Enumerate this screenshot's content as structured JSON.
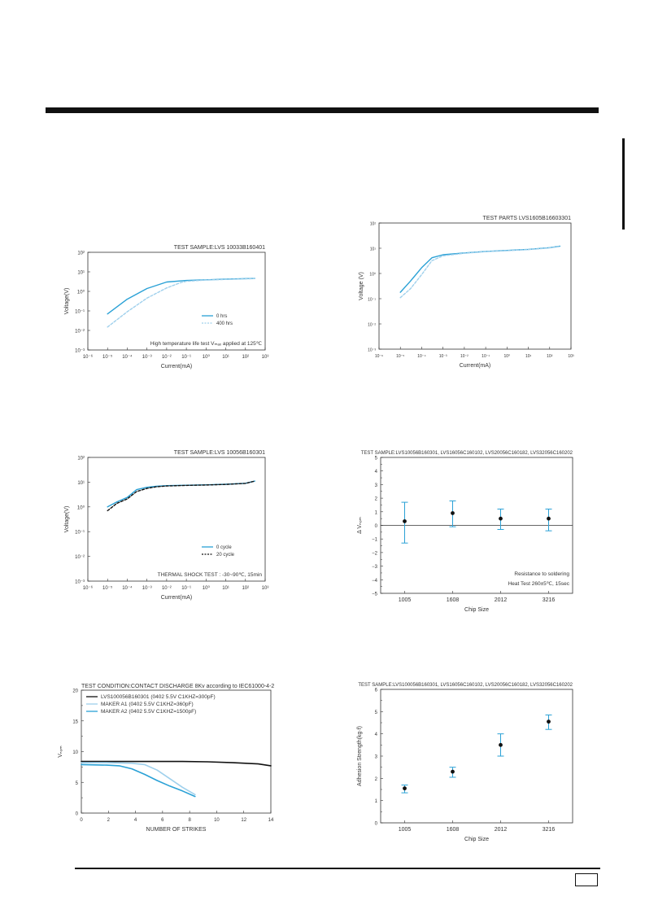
{
  "page": {
    "page_number": ""
  },
  "charts": [
    {
      "id": "c1",
      "type": "line",
      "title": "TEST SAMPLE:LVS 10033B160401",
      "xlabel": "Current(mA)",
      "ylabel": "Voltage(V)",
      "x_scale": "log",
      "y_scale": "log",
      "xlim": [
        1e-06,
        1000.0
      ],
      "ylim": [
        0.001,
        100.0
      ],
      "x_ticks": [
        "10⁻⁶",
        "10⁻⁵",
        "10⁻⁴",
        "10⁻³",
        "10⁻²",
        "10⁻¹",
        "10⁰",
        "10¹",
        "10²",
        "10³"
      ],
      "y_ticks": [
        "10⁻³",
        "10⁻²",
        "10⁻¹",
        "10⁰",
        "10¹",
        "10²"
      ],
      "annotation": "High temperature life test Vₘₐₓ applied at 125℃",
      "legend_position": "bottom-right",
      "series": [
        {
          "name": "0     hrs",
          "style": "solid",
          "color": "#2aa1d6",
          "x": [
            1e-05,
            0.0001,
            0.001,
            0.01,
            0.1,
            1,
            10,
            300
          ],
          "y": [
            0.07,
            0.4,
            1.4,
            3.0,
            3.6,
            3.9,
            4.2,
            4.6
          ]
        },
        {
          "name": "400 hrs",
          "style": "dashed",
          "color": "#9fd0ec",
          "x": [
            1e-05,
            0.0001,
            0.001,
            0.01,
            0.05,
            0.1,
            1,
            10,
            300
          ],
          "y": [
            0.015,
            0.09,
            0.45,
            1.5,
            2.8,
            3.3,
            3.8,
            4.1,
            4.5
          ]
        }
      ]
    },
    {
      "id": "c2",
      "type": "line",
      "title": "TEST PARTS LVS1605B16603301",
      "xlabel": "Current(mA)",
      "ylabel": "Voltage (V)",
      "x_scale": "log",
      "y_scale": "log",
      "xlim": [
        1e-06,
        1000.0
      ],
      "ylim": [
        0.001,
        100.0
      ],
      "x_ticks": [
        "10⁻⁶",
        "10⁻⁵",
        "10⁻⁴",
        "10⁻³",
        "10⁻²",
        "10⁻¹",
        "10⁰",
        "10¹",
        "10²",
        "10³"
      ],
      "y_ticks": [
        "10⁻³",
        "10⁻²",
        "10⁻¹",
        "10⁰",
        "10¹",
        "10²"
      ],
      "series": [
        {
          "name": "",
          "style": "solid",
          "color": "#2aa1d6",
          "x": [
            1e-05,
            3e-05,
            0.0001,
            0.0003,
            0.001,
            0.01,
            0.1,
            1,
            10,
            100,
            300
          ],
          "y": [
            0.18,
            0.5,
            1.7,
            4.2,
            5.5,
            6.5,
            7.5,
            8.2,
            9.0,
            10.5,
            12
          ]
        },
        {
          "name": "",
          "style": "dashed",
          "color": "#9fd0ec",
          "x": [
            1e-05,
            3e-05,
            0.0001,
            0.0003,
            0.001,
            0.01,
            0.1,
            1,
            10,
            100,
            300
          ],
          "y": [
            0.11,
            0.25,
            0.9,
            3.2,
            5.0,
            6.3,
            7.3,
            8.0,
            8.8,
            10.3,
            11.8
          ]
        }
      ]
    },
    {
      "id": "c3",
      "type": "line",
      "title": "TEST SAMPLE:LVS 10056B160301",
      "xlabel": "Current(mA)",
      "ylabel": "Voltage(V)",
      "x_scale": "log",
      "y_scale": "log",
      "xlim": [
        1e-06,
        1000.0
      ],
      "ylim": [
        0.001,
        100.0
      ],
      "x_ticks": [
        "10⁻⁶",
        "10⁻⁵",
        "10⁻⁴",
        "10⁻³",
        "10⁻²",
        "10⁻¹",
        "10⁰",
        "10¹",
        "10²",
        "10³"
      ],
      "y_ticks": [
        "10⁻³",
        "10⁻²",
        "10⁻¹",
        "10⁰",
        "10¹",
        "10²"
      ],
      "annotation": "THERMAL SHOCK TEST : -30~90℃, 15min",
      "legend_position": "bottom-right",
      "series": [
        {
          "name": "0   cycle",
          "style": "solid",
          "color": "#2aa1d6",
          "x": [
            1e-05,
            3e-05,
            0.0001,
            0.0003,
            0.001,
            0.003,
            0.01,
            0.1,
            1,
            10,
            100,
            300
          ],
          "y": [
            1.0,
            1.6,
            2.4,
            5.0,
            6.2,
            6.8,
            7.2,
            7.5,
            7.8,
            8.2,
            9.0,
            11
          ]
        },
        {
          "name": "20 cycle",
          "style": "dashed",
          "color": "#111111",
          "x": [
            1e-05,
            3e-05,
            0.0001,
            0.0003,
            0.001,
            0.003,
            0.01,
            0.1,
            1,
            10,
            100,
            300
          ],
          "y": [
            0.7,
            1.4,
            2.1,
            4.2,
            5.6,
            6.5,
            7.0,
            7.4,
            7.7,
            8.1,
            8.9,
            11
          ]
        }
      ]
    },
    {
      "id": "c4",
      "type": "scatter",
      "title": "TEST SAMPLE:LVS10056B160301, LVS16056C160102, LVS20056C160182, LVS32056C160202",
      "xlabel": "Chip Size",
      "ylabel": "Δ  Vₙₒₘ",
      "categories": [
        "1005",
        "1608",
        "2012",
        "3216"
      ],
      "ylim": [
        -5,
        5
      ],
      "y_ticks": [
        "5",
        "4",
        "3",
        "2",
        "1",
        "0",
        "−1",
        "−2",
        "−3",
        "−4",
        "−5"
      ],
      "annotation_lines": [
        "Resistance to soldering",
        "Heat Test 260±5℃, 15sec"
      ],
      "values": [
        0.3,
        0.9,
        0.5,
        0.5
      ],
      "err_low": [
        -1.3,
        -0.1,
        -0.3,
        -0.4
      ],
      "err_high": [
        1.7,
        1.8,
        1.2,
        1.2
      ],
      "zero_line": true
    },
    {
      "id": "c5",
      "type": "line",
      "title": "TEST CONDITION:CONTACT DISCHARGE 8Kv according to IEC61000-4-2",
      "xlabel": "NUMBER OF STRIKES",
      "ylabel": "Vₙₒₘ",
      "xlim": [
        0,
        15
      ],
      "ylim": [
        0,
        20
      ],
      "x_ticks": [
        "0",
        "2",
        "4",
        "6",
        "8",
        "10",
        "12",
        "14"
      ],
      "y_ticks": [
        "0",
        "5",
        "10",
        "15",
        "20"
      ],
      "legend_position": "top-left",
      "series": [
        {
          "name": "LVS100056B160301 (0402 5.5V C1KHZ=300pF)",
          "color": "#111111",
          "x": [
            0,
            2,
            4,
            6,
            8,
            10,
            12,
            14,
            15
          ],
          "y": [
            8.4,
            8.4,
            8.4,
            8.4,
            8.4,
            8.35,
            8.2,
            8.0,
            7.7
          ]
        },
        {
          "name": "MAKER A1 (0402 5.5V C1KHZ=360pF)",
          "color": "#9fd0ec",
          "x": [
            0,
            2,
            4,
            5,
            6,
            7,
            8,
            9
          ],
          "y": [
            8.2,
            8.2,
            8.1,
            7.9,
            7.0,
            5.6,
            4.2,
            3.0
          ]
        },
        {
          "name": "MAKER A2 (0402 5.5V C1KHZ=1500pF)",
          "color": "#2aa1d6",
          "x": [
            0,
            2,
            3,
            4,
            5,
            6,
            7,
            8,
            9
          ],
          "y": [
            7.9,
            7.8,
            7.7,
            7.2,
            6.3,
            5.3,
            4.4,
            3.6,
            2.7
          ]
        }
      ]
    },
    {
      "id": "c6",
      "type": "scatter",
      "title": "TEST SAMPLE:LVS100056B160301, LVS16056C160102, LVS20056C160182, LVS32056C160202",
      "xlabel": "Chip Size",
      "ylabel": "Adhesion Strength(kg·f)",
      "categories": [
        "1005",
        "1608",
        "2012",
        "3216"
      ],
      "ylim": [
        0,
        6
      ],
      "y_ticks": [
        "0",
        "1",
        "2",
        "3",
        "4",
        "5",
        "6"
      ],
      "values": [
        1.55,
        2.3,
        3.5,
        4.55
      ],
      "err_low": [
        1.35,
        2.05,
        3.0,
        4.2
      ],
      "err_high": [
        1.7,
        2.5,
        4.0,
        4.85
      ]
    }
  ]
}
